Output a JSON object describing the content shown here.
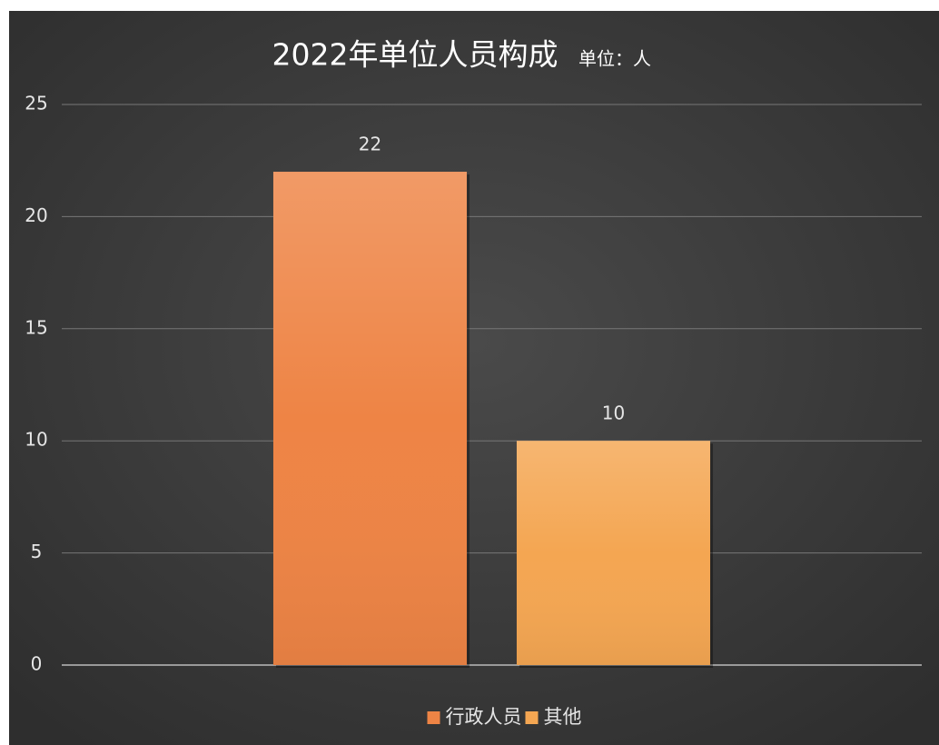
{
  "chart_data": {
    "type": "bar",
    "title": "2022年单位人员构成",
    "subtitle": "单位：人",
    "categories": [
      null
    ],
    "series": [
      {
        "name": "行政人员",
        "color": "#ee8445",
        "values": [
          22
        ]
      },
      {
        "name": "其他",
        "color": "#f4a652",
        "values": [
          10
        ]
      }
    ],
    "ylim": [
      0,
      25
    ],
    "yticks": [
      0,
      5,
      10,
      15,
      20,
      25
    ],
    "grid": true,
    "legend": "bottom"
  }
}
